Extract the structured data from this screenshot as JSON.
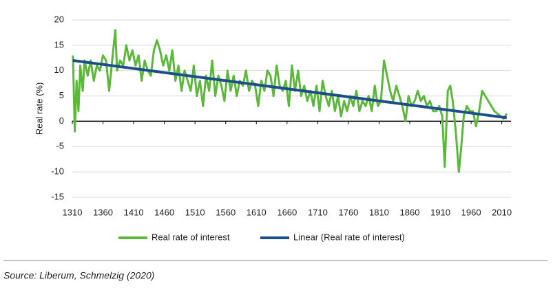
{
  "chart_data": {
    "type": "line",
    "y_label": "Real rate (%)",
    "source": "Source: Liberum, Schmelzig (2020)",
    "xlim": [
      1310,
      2025
    ],
    "ylim": [
      -15,
      20
    ],
    "xticks": [
      1310,
      1360,
      1410,
      1460,
      1510,
      1560,
      1610,
      1660,
      1710,
      1760,
      1810,
      1860,
      1910,
      1960,
      2010
    ],
    "yticks": [
      -15,
      -10,
      -5,
      0,
      5,
      10,
      15,
      20
    ],
    "grid": true,
    "legend": "bottom",
    "series": [
      {
        "name": "Real rate of interest",
        "color": "#5cb83a",
        "x": [
          1311,
          1314,
          1317,
          1320,
          1323,
          1327,
          1330,
          1335,
          1340,
          1345,
          1350,
          1355,
          1360,
          1365,
          1370,
          1375,
          1380,
          1383,
          1388,
          1393,
          1398,
          1403,
          1408,
          1413,
          1418,
          1423,
          1428,
          1433,
          1438,
          1443,
          1448,
          1453,
          1458,
          1463,
          1468,
          1473,
          1478,
          1483,
          1488,
          1493,
          1498,
          1503,
          1508,
          1513,
          1518,
          1523,
          1528,
          1533,
          1538,
          1543,
          1548,
          1553,
          1558,
          1563,
          1568,
          1573,
          1578,
          1583,
          1588,
          1593,
          1598,
          1603,
          1608,
          1613,
          1618,
          1623,
          1628,
          1633,
          1638,
          1643,
          1648,
          1653,
          1658,
          1663,
          1668,
          1673,
          1678,
          1683,
          1688,
          1693,
          1698,
          1703,
          1708,
          1713,
          1718,
          1723,
          1728,
          1733,
          1738,
          1743,
          1748,
          1753,
          1758,
          1763,
          1768,
          1773,
          1778,
          1783,
          1788,
          1793,
          1798,
          1803,
          1808,
          1813,
          1818,
          1823,
          1828,
          1833,
          1838,
          1843,
          1848,
          1853,
          1858,
          1863,
          1868,
          1873,
          1878,
          1883,
          1888,
          1893,
          1898,
          1903,
          1908,
          1913,
          1917,
          1922,
          1926,
          1930,
          1935,
          1940,
          1944,
          1948,
          1953,
          1958,
          1963,
          1968,
          1973,
          1978,
          1983,
          1988,
          1993,
          1998,
          2003,
          2008,
          2013,
          2018
        ],
        "values": [
          13,
          -2,
          8,
          2,
          11,
          6,
          12,
          9,
          12,
          8,
          11,
          10,
          13,
          12,
          6,
          12,
          18,
          10,
          12,
          11,
          15,
          12,
          14,
          11,
          13,
          8,
          12,
          10,
          9,
          14,
          16,
          14,
          11,
          13,
          10,
          14,
          8,
          11,
          6,
          10,
          8,
          6,
          11,
          5,
          8,
          3,
          9,
          6,
          12,
          5,
          9,
          7,
          4,
          10,
          6,
          9,
          5,
          8,
          7,
          10,
          6,
          8,
          7,
          3,
          8,
          6,
          10,
          9,
          5,
          11,
          7,
          6,
          8,
          3,
          11,
          6,
          10,
          5,
          7,
          4,
          6,
          3,
          7,
          2,
          8,
          5,
          3,
          6,
          2,
          5,
          1,
          4,
          2,
          5,
          3,
          6,
          2,
          4,
          3,
          5,
          2,
          7,
          3,
          4,
          12,
          9,
          6,
          4,
          7,
          5,
          3,
          0,
          5,
          3,
          4,
          6,
          4,
          5,
          3,
          4,
          2,
          2,
          3,
          1,
          -9,
          6,
          7,
          4,
          -2,
          -10,
          -5,
          1,
          3,
          2,
          2,
          -1,
          2,
          6,
          5,
          4,
          3,
          2,
          1.5,
          1,
          0.5,
          1.5
        ]
      },
      {
        "name": "Linear (Real rate of interest)",
        "color": "#1b4f8c",
        "x": [
          1311,
          2018
        ],
        "values": [
          12,
          0.7
        ]
      }
    ]
  }
}
